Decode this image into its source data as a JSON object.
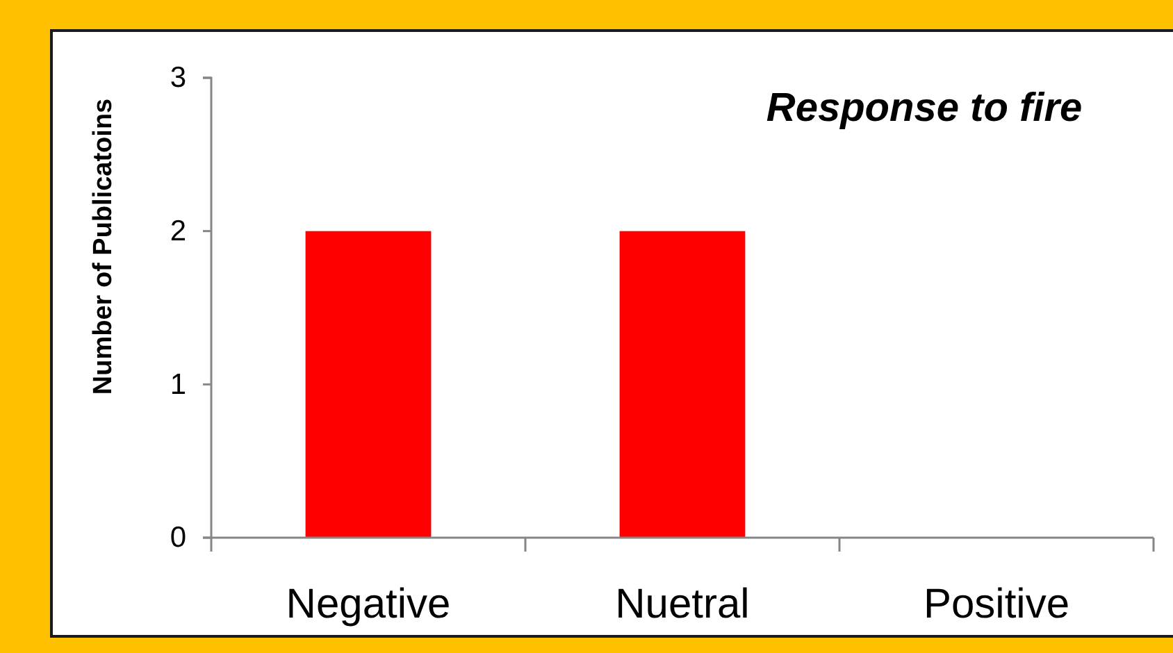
{
  "chart_data": {
    "type": "bar",
    "title": "Response to fire",
    "ylabel": "Number of Publicatoins",
    "categories": [
      "Negative",
      "Nuetral",
      "Positive"
    ],
    "values": [
      2,
      2,
      0
    ],
    "color": "#ff0000",
    "ylim": [
      0,
      3
    ],
    "yticks": [
      0,
      1,
      2,
      3
    ]
  }
}
